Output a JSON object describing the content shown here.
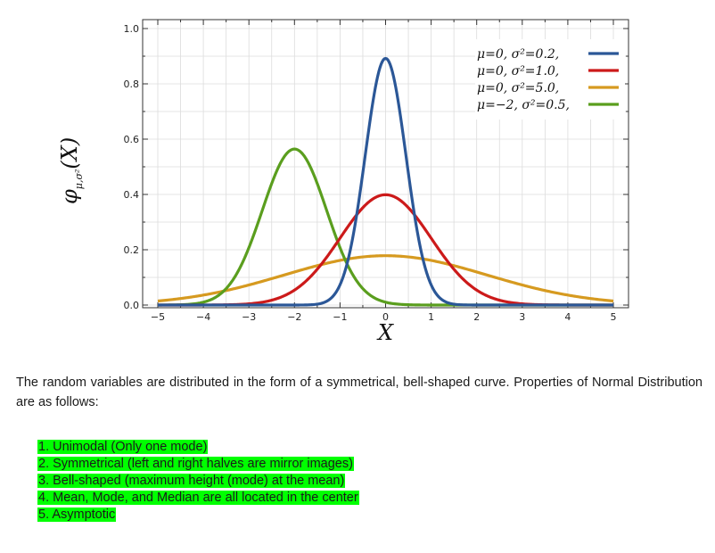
{
  "chart_data": {
    "type": "line",
    "title": "",
    "xlabel": "X",
    "ylabel_main": "φ",
    "ylabel_sub": "μ,σ²",
    "ylabel_arg": "(X)",
    "xlim": [
      -5,
      5
    ],
    "ylim": [
      0,
      1.0
    ],
    "x_ticks": [
      "−5",
      "−4",
      "−3",
      "−2",
      "−1",
      "0",
      "1",
      "2",
      "3",
      "4",
      "5"
    ],
    "y_ticks": [
      "0.0",
      "0.2",
      "0.4",
      "0.6",
      "0.8",
      "1.0"
    ],
    "grid": true,
    "legend_position": "top-right",
    "series": [
      {
        "name": "μ=0,  σ²=0.2,",
        "mu": 0,
        "variance": 0.2,
        "color": "#2b5797",
        "peak": 0.892
      },
      {
        "name": "μ=0,  σ²=1.0,",
        "mu": 0,
        "variance": 1.0,
        "color": "#cc1a1a",
        "peak": 0.399
      },
      {
        "name": "μ=0,  σ²=5.0,",
        "mu": 0,
        "variance": 5.0,
        "color": "#d69a20",
        "peak": 0.178
      },
      {
        "name": "μ=−2, σ²=0.5,",
        "mu": -2,
        "variance": 0.5,
        "color": "#5a9e1e",
        "peak": 0.564
      }
    ]
  },
  "text": {
    "paragraph": "The random variables are distributed in the form of a symmetrical, bell-shaped curve. Properties of Normal Distribution are as follows:",
    "properties": [
      "1.  Unimodal (Only one mode)",
      "2.  Symmetrical (left and right halves are mirror images)",
      "3.  Bell-shaped (maximum height (mode) at the mean)",
      "4.  Mean, Mode, and Median are all located in the center",
      "5.  Asymptotic"
    ]
  },
  "colors": {
    "highlight": "#00ff00"
  }
}
